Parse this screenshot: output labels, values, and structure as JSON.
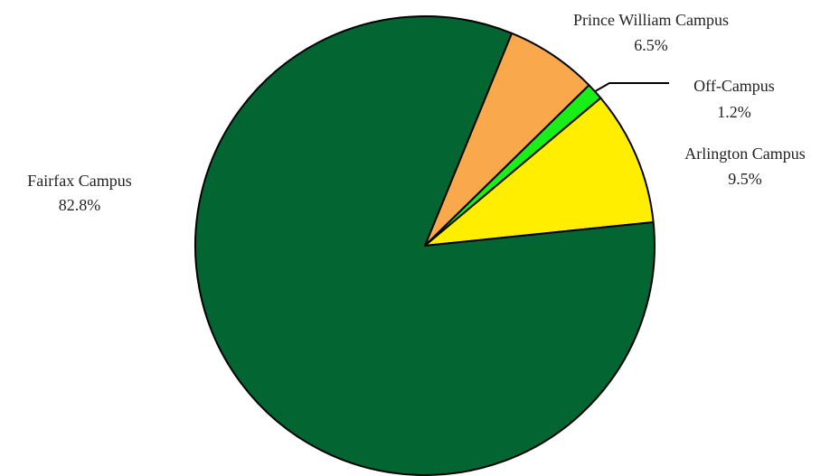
{
  "chart_data": {
    "type": "pie",
    "title": "",
    "slices": [
      {
        "label": "Fairfax Campus",
        "value": 82.8,
        "display": "82.8%",
        "color": "#036532"
      },
      {
        "label": "Prince William Campus",
        "value": 6.5,
        "display": "6.5%",
        "color": "#f9a94b"
      },
      {
        "label": "Off-Campus",
        "value": 1.2,
        "display": "1.2%",
        "color": "#19ee19"
      },
      {
        "label": "Arlington Campus",
        "value": 9.5,
        "display": "9.5%",
        "color": "#ffee00"
      }
    ],
    "legend": "none",
    "labels": "outside"
  }
}
